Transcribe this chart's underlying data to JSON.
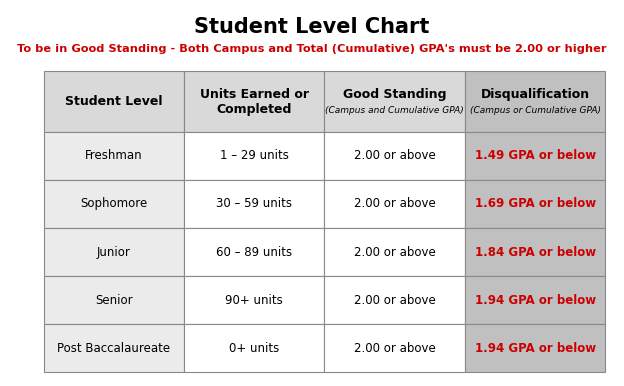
{
  "title": "Student Level Chart",
  "subtitle": "To be in Good Standing - Both Campus and Total (Cumulative) GPA's must be 2.00 or higher",
  "title_color": "#000000",
  "subtitle_color": "#cc0000",
  "background_color": "#ffffff",
  "col_headers_main": [
    "Student Level",
    "Units Earned or\nCompleted",
    "Good Standing",
    "Disqualification"
  ],
  "col_headers_sub": [
    "",
    "",
    "(Campus and Cumulative GPA)",
    "(Campus or Cumulative GPA)"
  ],
  "rows": [
    [
      "Freshman",
      "1 – 29 units",
      "2.00 or above",
      "1.49 GPA or below"
    ],
    [
      "Sophomore",
      "30 – 59 units",
      "2.00 or above",
      "1.69 GPA or below"
    ],
    [
      "Junior",
      "60 – 89 units",
      "2.00 or above",
      "1.84 GPA or below"
    ],
    [
      "Senior",
      "90+ units",
      "2.00 or above",
      "1.94 GPA or below"
    ],
    [
      "Post Baccalaureate",
      "0+ units",
      "2.00 or above",
      "1.94 GPA or below"
    ]
  ],
  "header_bg": "#d9d9d9",
  "disq_col_bg": "#c0c0c0",
  "row_bg_col0": "#ebebeb",
  "row_bg_col1": "#ffffff",
  "row_bg_col2": "#ffffff",
  "cell_text_color": "#000000",
  "disq_text_color": "#cc0000",
  "border_color": "#888888",
  "title_fontsize": 15,
  "subtitle_fontsize": 8.2,
  "header_main_fontsize": 9,
  "header_sub_fontsize": 6.5,
  "cell_fontsize": 8.5
}
